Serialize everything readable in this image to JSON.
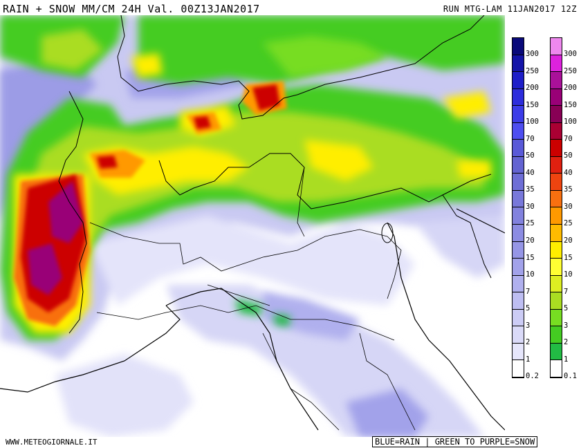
{
  "header": {
    "title": "RAIN + SNOW MM/CM 24H Val. 00Z13JAN2017",
    "run_info": "RUN MTG-LAM 11JAN2017 12Z"
  },
  "footer": {
    "website": "WWW.METEOGIORNALE.IT",
    "legend_note": "BLUE=RAIN | GREEN TO PURPLE=SNOW"
  },
  "rain_scale": {
    "labels": [
      "300",
      "250",
      "200",
      "150",
      "100",
      "70",
      "50",
      "40",
      "35",
      "30",
      "25",
      "20",
      "15",
      "10",
      "7",
      "5",
      "3",
      "2",
      "1",
      "0.2"
    ],
    "colors": [
      "#0a0a7a",
      "#1414a8",
      "#1e1ec8",
      "#2d2ddc",
      "#3c3ce8",
      "#4e4ef0",
      "#5a5ad8",
      "#6464d2",
      "#6e6ed6",
      "#7878da",
      "#8282de",
      "#8c8ce2",
      "#9696e6",
      "#a2a2ea",
      "#b0b0ee",
      "#bebef2",
      "#ccccf5",
      "#dadaf8",
      "#e6e6fb",
      "#ffffff"
    ]
  },
  "snow_scale": {
    "labels": [
      "300",
      "250",
      "200",
      "150",
      "100",
      "70",
      "50",
      "40",
      "35",
      "30",
      "25",
      "20",
      "15",
      "10",
      "7",
      "5",
      "3",
      "2",
      "1",
      "0.1"
    ],
    "colors": [
      "#ee88ee",
      "#dd22dd",
      "#aa1199",
      "#990077",
      "#880055",
      "#aa0033",
      "#cc0000",
      "#e02010",
      "#ee4410",
      "#f87010",
      "#ff9900",
      "#ffbb00",
      "#ffee00",
      "#ffff33",
      "#ddee22",
      "#aadd22",
      "#77dd22",
      "#44cc22",
      "#22bb44",
      "#ffffff"
    ]
  }
}
